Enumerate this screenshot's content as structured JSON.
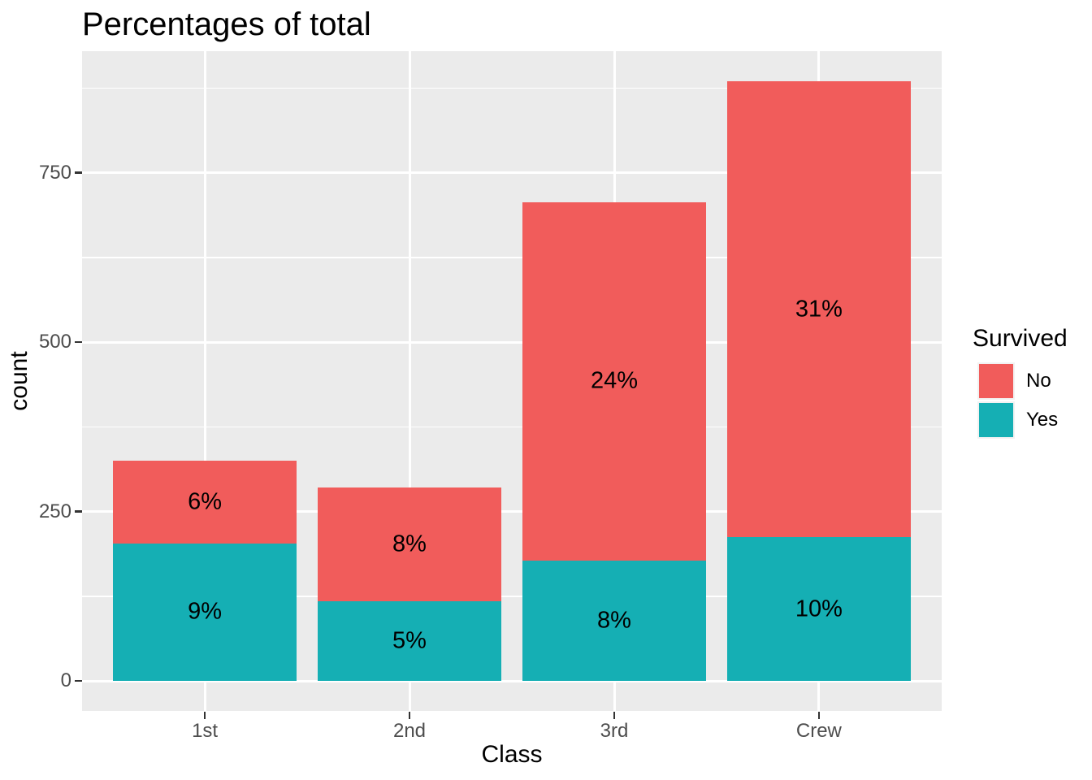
{
  "title": "Percentages of total",
  "axes": {
    "x_title": "Class",
    "y_title": "count",
    "x_tick_labels": [
      "1st",
      "2nd",
      "3rd",
      "Crew"
    ],
    "y_tick_labels": [
      "0",
      "250",
      "500",
      "750"
    ]
  },
  "legend": {
    "title": "Survived",
    "items": [
      {
        "label": "No",
        "color": "#F15C5B"
      },
      {
        "label": "Yes",
        "color": "#15AFB4"
      }
    ]
  },
  "chart_data": {
    "type": "bar",
    "stacked": true,
    "orientation": "vertical",
    "title": "Percentages of total",
    "xlabel": "Class",
    "ylabel": "count",
    "categories": [
      "1st",
      "2nd",
      "3rd",
      "Crew"
    ],
    "series": [
      {
        "name": "Yes",
        "color": "#15AFB4",
        "values": [
          203,
          118,
          178,
          212
        ],
        "percent_labels": [
          "9%",
          "5%",
          "8%",
          "10%"
        ]
      },
      {
        "name": "No",
        "color": "#F15C5B",
        "values": [
          122,
          167,
          528,
          673
        ],
        "percent_labels": [
          "6%",
          "8%",
          "24%",
          "31%"
        ]
      }
    ],
    "ylim": [
      -44.25,
      929.25
    ],
    "y_major_gridlines": [
      0,
      250,
      500,
      750
    ],
    "y_minor_gridlines": [
      125,
      375,
      625,
      875
    ],
    "grid": true,
    "legend_position": "right",
    "panel_background": "#EBEBEB",
    "gridline_color": "#FFFFFF",
    "bar_width_fraction": 0.9
  },
  "colors": {
    "background": "#FFFFFF",
    "panel": "#EBEBEB",
    "gridline": "#FFFFFF",
    "tick_label": "#4D4D4D",
    "tick_mark": "#333333",
    "text": "#000000",
    "legend_key_bg": "#F2F2F2"
  }
}
